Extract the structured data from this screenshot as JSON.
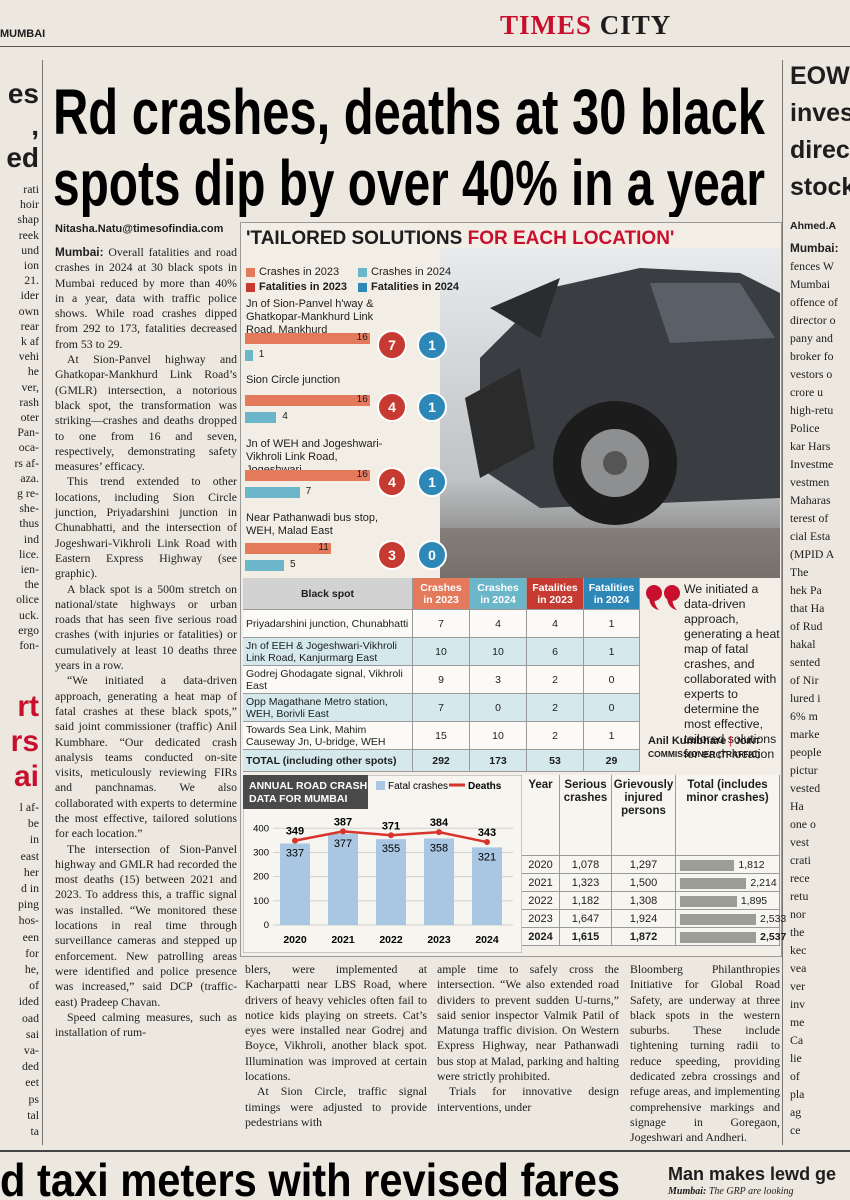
{
  "header": {
    "edition": "MUMBAI",
    "masthead_1": "TIMES",
    "masthead_2": "CITY"
  },
  "headline": [
    "Rd crashes, deaths at 30 black",
    "spots dip by over 40% in a year"
  ],
  "byline": "Nitasha.Natu@timesofindia.com",
  "article": {
    "dateline": "Mumbai:",
    "left_column": [
      "Overall fatalities and road crashes in 2024 at 30 black spots in Mumbai reduced by more than 40% in a year, data with traffic police shows. While road crashes dipped from 292 to 173, fatalities decreased from 53 to 29.",
      "At Sion-Panvel highway and Ghatkopar-Mankhurd Link Road’s (GMLR) intersection, a notorious black spot, the transformation was striking—crashes and deaths dropped to one from 16 and seven, respectively, demonstrating safety measures’ efficacy.",
      "This trend extended to other locations, including Sion Circle junction, Priyadarshini junction in Chunabhatti, and the intersection of Jogeshwari-Vikhroli Link Road with Eastern Express Highway (see graphic).",
      "A black spot is a 500m stretch on national/state highways or urban roads that has seen five serious road crashes (with injuries or fatalities) or cumulatively at least 10 deaths three years in a row.",
      "“We initiated a data-driven approach, generating a heat map of fatal crashes at these black spots,” said joint commissioner (traffic) Anil Kumbhare. “Our dedicated crash analysis teams conducted on-site visits, meticulously reviewing FIRs and panchnamas. We also collaborated with experts to determine the most effective, tailored solutions for each location.”",
      "The intersection of Sion-Panvel highway and GMLR had recorded the most deaths (15) between 2021 and 2023. To address this, a traffic signal was installed. “We monitored these locations in real time through surveillance cameras and stepped up enforcement. New patrolling areas were identified and police presence was increased,” said DCP (traffic-east) Pradeep Chavan.",
      "Speed calming measures, such as installation of rum-"
    ],
    "column_2": [
      "blers, were implemented at Kacharpatti near LBS Road, where drivers of heavy vehicles often fail to notice kids playing on streets. Cat’s eyes were installed near Godrej and Boyce, Vikhroli, another black spot. Illumination was improved at certain locations.",
      "At Sion Circle, traffic signal timings were adjusted to provide pedestrians with"
    ],
    "column_3": [
      "ample time to safely cross the intersection. “We also extended road dividers to prevent sudden U-turns,” said senior inspector Valmik Patil of Matunga traffic division. On Western Express Highway, near Pathanwadi bus stop at Malad, parking and halting were strictly prohibited.",
      "Trials for innovative design interventions, under"
    ],
    "column_4": [
      "Bloomberg Philanthropies Initiative for Global Road Safety, are underway at three black spots in the western suburbs. These include tightening turning radii to reduce speeding, providing dedicated zebra crossings and refuge areas, and implementing comprehensive markings and signage in Goregaon, Jogeshwari and Andheri."
    ]
  },
  "graphic": {
    "title_1": "'TAILORED SOLUTIONS",
    "title_2": "FOR EACH LOCATION'",
    "legend": [
      {
        "label": "Crashes in 2023",
        "color": "#e4795c"
      },
      {
        "label": "Crashes in 2024",
        "color": "#6bb6c9"
      },
      {
        "label": "Fatalities in 2023",
        "color": "#c73a32"
      },
      {
        "label": "Fatalities in 2024",
        "color": "#2d88b8"
      }
    ],
    "spots": [
      {
        "name": "Jn of Sion-Panvel h'way & Ghatkopar-Mankhurd Link Road, Mankhurd",
        "crashes_2023": 16,
        "crashes_2024": 1,
        "fatalities_2023": 7,
        "fatalities_2024": 1
      },
      {
        "name": "Sion Circle junction",
        "crashes_2023": 16,
        "crashes_2024": 4,
        "fatalities_2023": 4,
        "fatalities_2024": 1
      },
      {
        "name": "Jn of WEH and Jogeshwari-Vikhroli Link Road, Jogeshwari",
        "crashes_2023": 16,
        "crashes_2024": 7,
        "fatalities_2023": 4,
        "fatalities_2024": 1
      },
      {
        "name": "Near Pathanwadi bus stop, WEH, Malad East",
        "crashes_2023": 11,
        "crashes_2024": 5,
        "fatalities_2023": 3,
        "fatalities_2024": 0
      }
    ]
  },
  "table": {
    "headers": [
      "Black spot",
      "Crashes in 2023",
      "Crashes in 2024",
      "Fatalities in 2023",
      "Fatalities in 2024"
    ],
    "rows": [
      [
        "Priyadarshini junction, Chunabhatti",
        7,
        4,
        4,
        1
      ],
      [
        "Jn of EEH & Jogeshwari-Vikhroli Link Road, Kanjurmarg East",
        10,
        10,
        6,
        1
      ],
      [
        "Godrej Ghodagate signal, Vikhroli East",
        9,
        3,
        2,
        0
      ],
      [
        "Opp Magathane Metro station, WEH, Borivli East",
        7,
        0,
        2,
        0
      ],
      [
        "Towards Sea Link, Mahim Causeway Jn, U-bridge, WEH",
        15,
        10,
        2,
        1
      ],
      [
        "TOTAL (including other spots)",
        292,
        173,
        53,
        29
      ]
    ]
  },
  "quote": {
    "text": "We initiated a data-driven approach, generating a heat map of fatal crashes, and collaborated with experts to determine the most effective, tailored solutions for each location",
    "name": "Anil Kumbhare",
    "role": "JOINT COMMISSIONER (TRAFFIC)"
  },
  "annual_chart": {
    "title": "ANNUAL ROAD CRASH DATA FOR MUMBAI",
    "categories": [
      2020,
      2021,
      2022,
      2023,
      2024
    ],
    "series": [
      {
        "name": "Fatal crashes",
        "color": "#a9c7e3",
        "values": [
          337,
          377,
          355,
          358,
          321
        ]
      },
      {
        "name": "Deaths",
        "color": "#d8342c",
        "values": [
          349,
          387,
          371,
          384,
          343
        ]
      }
    ],
    "ylim": [
      0,
      430
    ],
    "yticks": [
      0,
      100,
      200,
      300,
      400
    ]
  },
  "annual_table": {
    "headers": [
      "Year",
      "Serious crashes",
      "Grievously injured persons",
      "Total (includes minor crashes)"
    ],
    "rows": [
      [
        2020,
        "1,078",
        "1,297",
        {
          "value": 1812,
          "label": "1,812"
        }
      ],
      [
        2021,
        "1,323",
        "1,500",
        {
          "value": 2214,
          "label": "2,214"
        }
      ],
      [
        2022,
        "1,182",
        "1,308",
        {
          "value": 1895,
          "label": "1,895"
        }
      ],
      [
        2023,
        "1,647",
        "1,924",
        {
          "value": 2533,
          "label": "2,533"
        }
      ],
      [
        2024,
        "1,615",
        "1,872",
        {
          "value": 2537,
          "label": "2,537"
        }
      ]
    ]
  },
  "side_left": {
    "headline_1": [
      "es",
      ",",
      "ed"
    ],
    "text_1": [
      "rati",
      "hoir",
      "shap",
      "reek",
      "und",
      "ion",
      "21.",
      "ider",
      "own",
      "rear",
      "k af",
      "vehi",
      "he",
      "ver,",
      "rash",
      "oter",
      "Pan-",
      "oca-",
      "rs af-",
      "aza.",
      "g re-",
      "she-",
      "thus",
      "ind",
      "lice.",
      "ien-",
      "the",
      "olice",
      "uck.",
      "ergo",
      "fon-"
    ],
    "headline_2": [
      "rt",
      "rs",
      "ai"
    ],
    "text_2": [
      "l af-",
      "be",
      "in",
      "east",
      "her",
      "d in",
      "ping",
      "hos-",
      "een",
      "for",
      "he,",
      "of",
      "ided",
      "oad",
      "sai",
      "va-",
      "ded",
      "eet",
      "ps",
      "tal",
      "ta"
    ]
  },
  "side_right": {
    "headline": [
      "EOW",
      "inves",
      "direct",
      "stock"
    ],
    "byline": "Ahmed.A",
    "text": [
      "Mumbai:",
      "fences W",
      "Mumbai",
      "offence of",
      "director o",
      "pany and",
      "broker fo",
      "vestors o",
      "crore u",
      "high-retu",
      "Police",
      "kar Hars",
      "Investme",
      "vestmen",
      "Maharas",
      "terest of",
      "cial Esta",
      "(MPID A",
      "The",
      "hek Pa",
      "that Ha",
      "of Rud",
      "hakal",
      "sented",
      "of Nir",
      "lured i",
      "6% m",
      "marke",
      "people",
      "pictur",
      "vested",
      "Ha",
      "one o",
      "vest",
      "crati",
      "rece",
      "retu",
      "nor",
      "the",
      "kec",
      "vea",
      "ver",
      "inv",
      "me",
      "Ca",
      "lie",
      "of",
      "pla",
      "ag",
      "ce"
    ]
  },
  "footer": {
    "headline": "d taxi meters with revised fares",
    "right_headline": "Man makes lewd ge",
    "right_dateline": "Mumbai:",
    "right_text": "The GRP are looking"
  }
}
